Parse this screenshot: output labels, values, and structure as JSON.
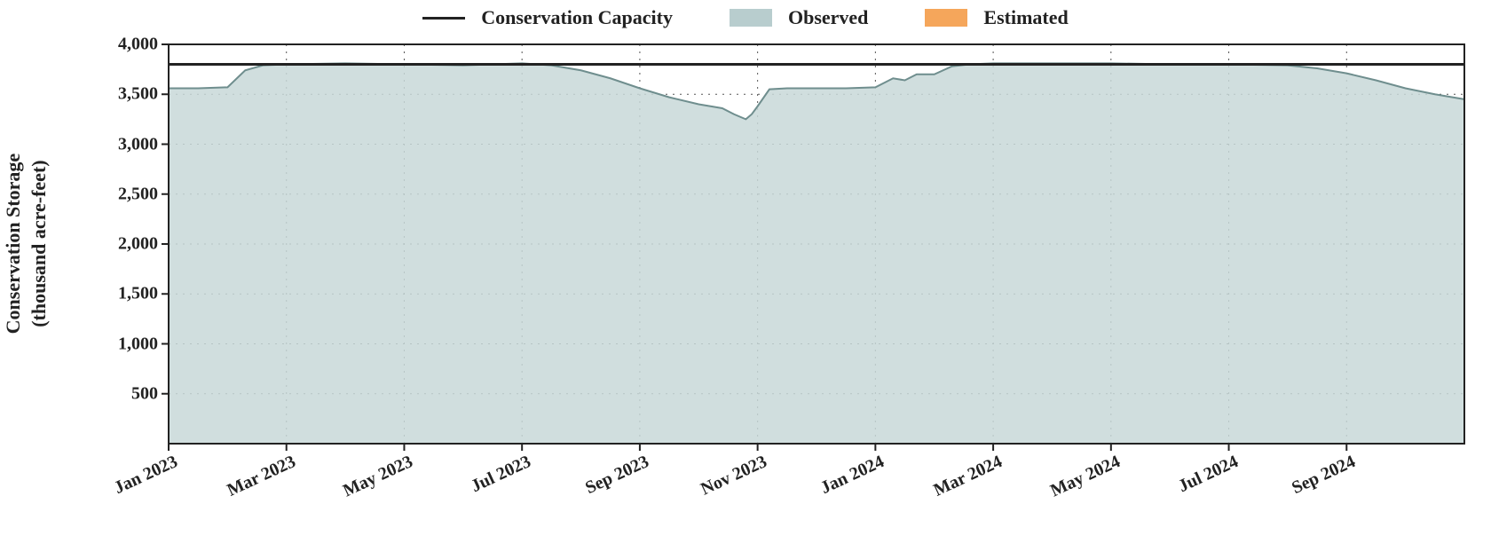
{
  "chart": {
    "type": "area",
    "background_color": "#ffffff",
    "axis_color": "#222222",
    "grid_color": "#555555",
    "grid_dash": "2,6",
    "grid_width": 1,
    "axis_width": 2,
    "font_family": "Georgia, 'Times New Roman', serif",
    "tick_fontsize": 20,
    "tick_fontweight": 600,
    "y_axis": {
      "title_line1": "Conservation Storage",
      "title_line2": "(thousand acre-feet)",
      "title_fontsize": 22,
      "title_fontweight": 700,
      "min": 0,
      "max": 4000,
      "ticks": [
        {
          "value": 500,
          "label": "500"
        },
        {
          "value": 1000,
          "label": "1,000"
        },
        {
          "value": 1500,
          "label": "1,500"
        },
        {
          "value": 2000,
          "label": "2,000"
        },
        {
          "value": 2500,
          "label": "2,500"
        },
        {
          "value": 3000,
          "label": "3,000"
        },
        {
          "value": 3500,
          "label": "3,500"
        },
        {
          "value": 4000,
          "label": "4,000"
        }
      ]
    },
    "x_axis": {
      "min": 0,
      "max": 22,
      "tick_rotation_deg": -25,
      "ticks": [
        {
          "value": 0,
          "label": "Jan 2023"
        },
        {
          "value": 2,
          "label": "Mar 2023"
        },
        {
          "value": 4,
          "label": "May 2023"
        },
        {
          "value": 6,
          "label": "Jul 2023"
        },
        {
          "value": 8,
          "label": "Sep 2023"
        },
        {
          "value": 10,
          "label": "Nov 2023"
        },
        {
          "value": 12,
          "label": "Jan 2024"
        },
        {
          "value": 14,
          "label": "Mar 2024"
        },
        {
          "value": 16,
          "label": "May 2024"
        },
        {
          "value": 18,
          "label": "Jul 2024"
        },
        {
          "value": 20,
          "label": "Sep 2024"
        }
      ]
    },
    "legend": {
      "fontsize": 22,
      "items": [
        {
          "key": "capacity",
          "label": "Conservation Capacity",
          "kind": "line",
          "color": "#222222"
        },
        {
          "key": "observed",
          "label": "Observed",
          "kind": "swatch",
          "color": "#b8cdce"
        },
        {
          "key": "estimated",
          "label": "Estimated",
          "kind": "swatch",
          "color": "#f5a65b"
        }
      ]
    },
    "series": {
      "capacity": {
        "type": "hline",
        "value": 3800,
        "color": "#222222",
        "width": 3
      },
      "observed": {
        "type": "area",
        "fill": "#c8d8d8",
        "fill_opacity": 0.85,
        "stroke": "#6f8e8e",
        "stroke_width": 2,
        "points": [
          {
            "x": 0.0,
            "y": 3560
          },
          {
            "x": 0.5,
            "y": 3560
          },
          {
            "x": 1.0,
            "y": 3570
          },
          {
            "x": 1.3,
            "y": 3740
          },
          {
            "x": 1.6,
            "y": 3790
          },
          {
            "x": 2.0,
            "y": 3800
          },
          {
            "x": 3.0,
            "y": 3810
          },
          {
            "x": 4.0,
            "y": 3800
          },
          {
            "x": 5.0,
            "y": 3790
          },
          {
            "x": 5.5,
            "y": 3800
          },
          {
            "x": 6.0,
            "y": 3810
          },
          {
            "x": 6.5,
            "y": 3790
          },
          {
            "x": 7.0,
            "y": 3740
          },
          {
            "x": 7.5,
            "y": 3660
          },
          {
            "x": 8.0,
            "y": 3560
          },
          {
            "x": 8.5,
            "y": 3470
          },
          {
            "x": 9.0,
            "y": 3400
          },
          {
            "x": 9.4,
            "y": 3360
          },
          {
            "x": 9.6,
            "y": 3300
          },
          {
            "x": 9.8,
            "y": 3250
          },
          {
            "x": 9.9,
            "y": 3300
          },
          {
            "x": 10.0,
            "y": 3380
          },
          {
            "x": 10.2,
            "y": 3550
          },
          {
            "x": 10.5,
            "y": 3560
          },
          {
            "x": 11.0,
            "y": 3560
          },
          {
            "x": 11.5,
            "y": 3560
          },
          {
            "x": 12.0,
            "y": 3570
          },
          {
            "x": 12.3,
            "y": 3660
          },
          {
            "x": 12.5,
            "y": 3640
          },
          {
            "x": 12.7,
            "y": 3700
          },
          {
            "x": 13.0,
            "y": 3700
          },
          {
            "x": 13.3,
            "y": 3780
          },
          {
            "x": 13.6,
            "y": 3800
          },
          {
            "x": 14.0,
            "y": 3810
          },
          {
            "x": 15.0,
            "y": 3810
          },
          {
            "x": 16.0,
            "y": 3810
          },
          {
            "x": 17.0,
            "y": 3800
          },
          {
            "x": 18.0,
            "y": 3800
          },
          {
            "x": 19.0,
            "y": 3790
          },
          {
            "x": 19.5,
            "y": 3760
          },
          {
            "x": 20.0,
            "y": 3710
          },
          {
            "x": 20.5,
            "y": 3640
          },
          {
            "x": 21.0,
            "y": 3560
          },
          {
            "x": 21.5,
            "y": 3500
          },
          {
            "x": 22.0,
            "y": 3450
          }
        ]
      },
      "estimated": {
        "type": "area",
        "fill": "#f5a65b",
        "fill_opacity": 0.85,
        "stroke": "#d97f2e",
        "stroke_width": 2,
        "points": []
      }
    }
  }
}
